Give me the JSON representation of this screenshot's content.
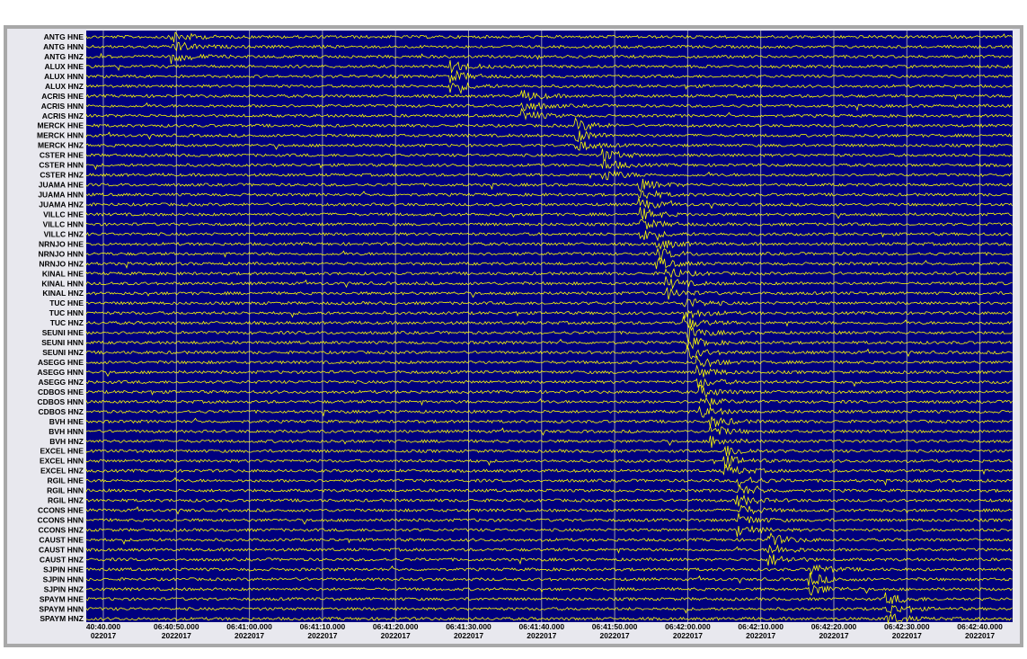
{
  "channels": [
    "ANTG HNE",
    "ANTG HNN",
    "ANTG HNZ",
    "ALUX HNE",
    "ALUX HNN",
    "ALUX HNZ",
    "ACRIS HNE",
    "ACRIS HNN",
    "ACRIS HNZ",
    "MERCK HNE",
    "MERCK HNN",
    "MERCK HNZ",
    "CSTER HNE",
    "CSTER HNN",
    "CSTER HNZ",
    "JUAMA HNE",
    "JUAMA HNN",
    "JUAMA HNZ",
    "VILLC HNE",
    "VILLC HNN",
    "VILLC HNZ",
    "NRNJO HNE",
    "NRNJO HNN",
    "NRNJO HNZ",
    "KINAL HNE",
    "KINAL HNN",
    "KINAL HNZ",
    "TUC HNE",
    "TUC HNN",
    "TUC HNZ",
    "SEUNI HNE",
    "SEUNI HNN",
    "SEUNI HNZ",
    "ASEGG HNE",
    "ASEGG HNN",
    "ASEGG HNZ",
    "CDBOS HNE",
    "CDBOS HNN",
    "CDBOS HNZ",
    "BVH HNE",
    "BVH HNN",
    "BVH HNZ",
    "EXCEL HNE",
    "EXCEL HNN",
    "EXCEL HNZ",
    "RGIL HNE",
    "RGIL HNN",
    "RGIL HNZ",
    "CCONS HNE",
    "CCONS HNN",
    "CCONS HNZ",
    "CAUST HNE",
    "CAUST HNN",
    "CAUST HNZ",
    "SJPIN HNE",
    "SJPIN HNN",
    "SJPIN HNZ",
    "SPAYM HNE",
    "SPAYM HNN",
    "SPAYM HNZ"
  ],
  "time_axis": [
    {
      "time": "40:40.000",
      "date": "022017"
    },
    {
      "time": "06:40:50.000",
      "date": "2022017"
    },
    {
      "time": "06:41:00.000",
      "date": "2022017"
    },
    {
      "time": "06:41:10.000",
      "date": "2022017"
    },
    {
      "time": "06:41:20.000",
      "date": "2022017"
    },
    {
      "time": "06:41:30.000",
      "date": "2022017"
    },
    {
      "time": "06:41:40.000",
      "date": "2022017"
    },
    {
      "time": "06:41:50.000",
      "date": "2022017"
    },
    {
      "time": "06:42:00.000",
      "date": "2022017"
    },
    {
      "time": "06:42:10.000",
      "date": "2022017"
    },
    {
      "time": "06:42:20.000",
      "date": "2022017"
    },
    {
      "time": "06:42:30.000",
      "date": "2022017"
    },
    {
      "time": "06:42:40.000",
      "date": "2022017"
    }
  ]
}
